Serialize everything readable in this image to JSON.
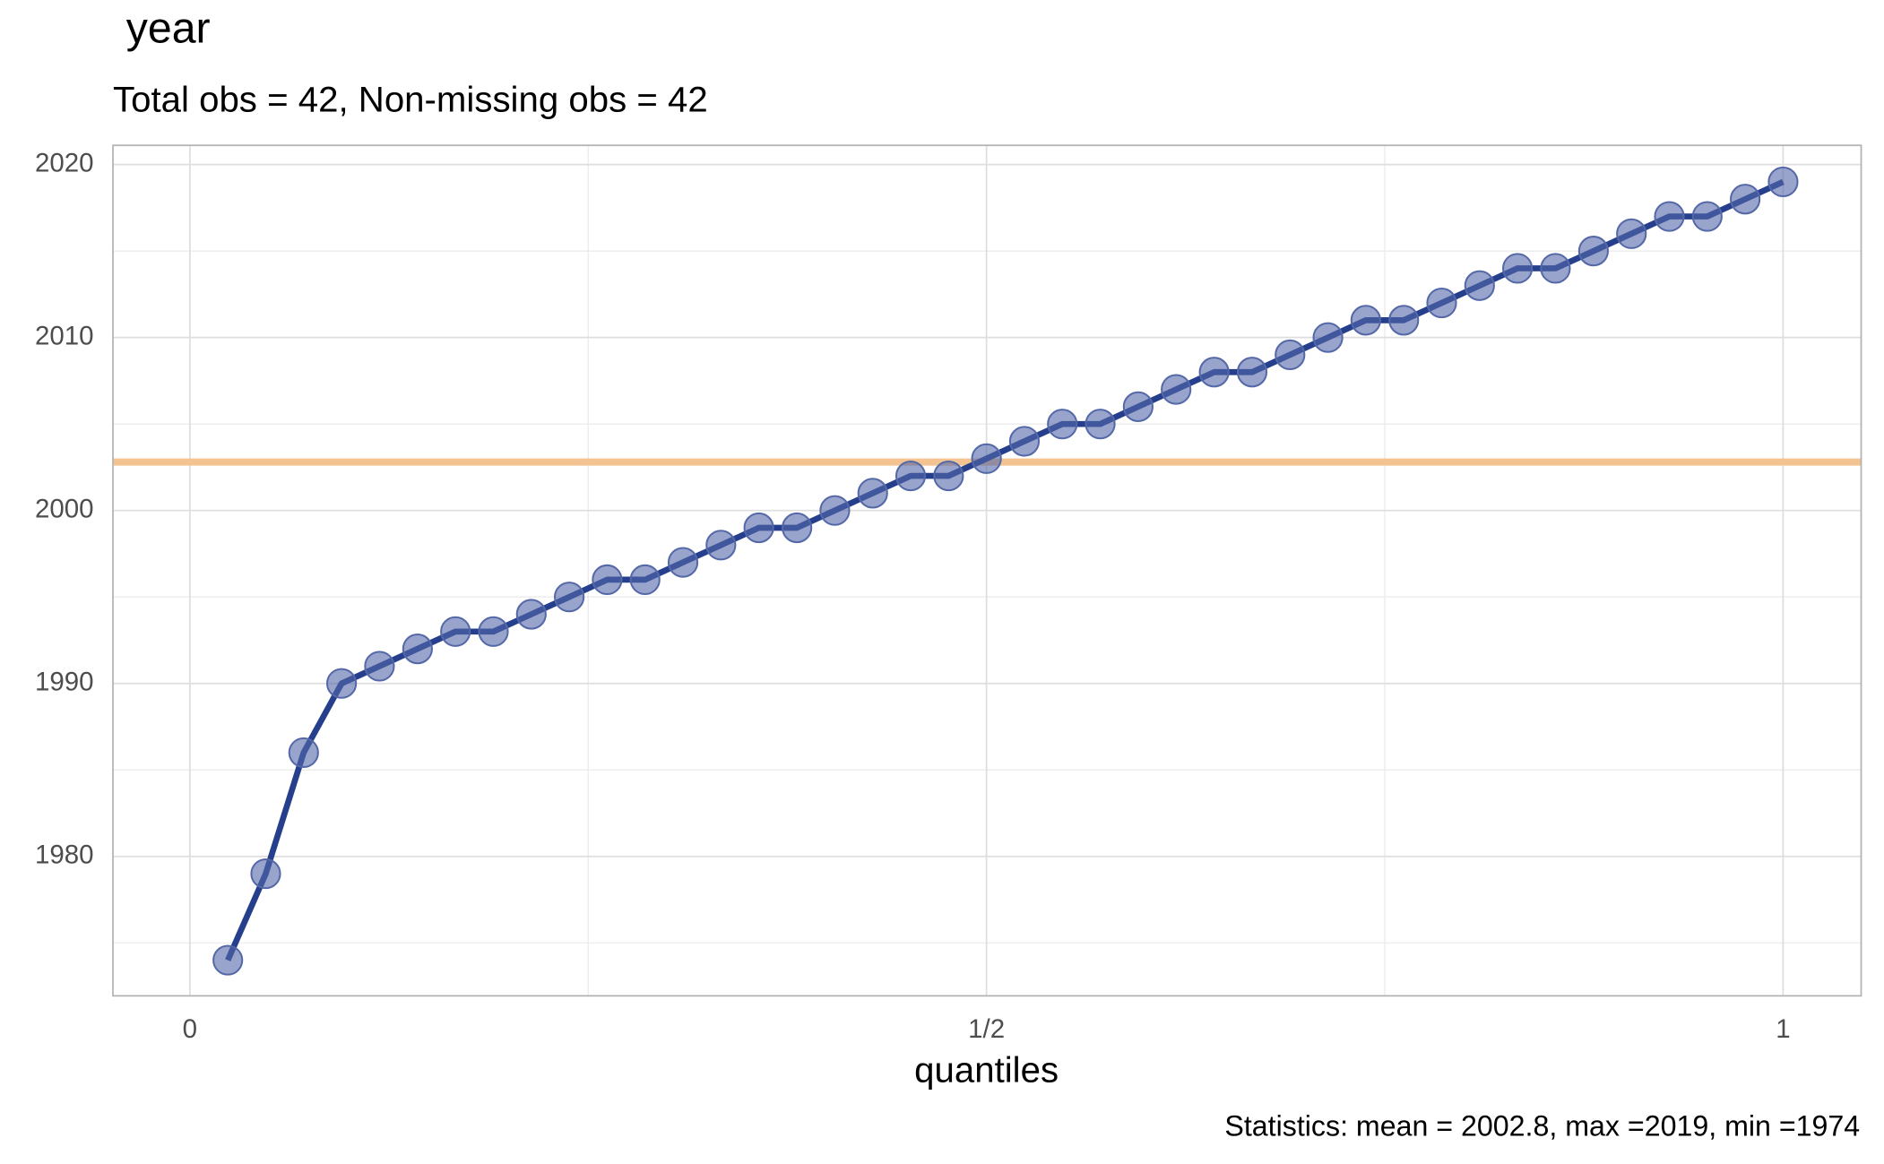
{
  "chart_data": {
    "type": "line",
    "title": "year",
    "subtitle": "Total obs = 42,  Non-missing obs = 42",
    "x_label": "quantiles",
    "caption": "Statistics: mean = 2002.8, max =2019, min =1974",
    "x": [
      0.0238,
      0.0476,
      0.0714,
      0.0952,
      0.119,
      0.1429,
      0.1667,
      0.1905,
      0.2143,
      0.2381,
      0.2619,
      0.2857,
      0.3095,
      0.3333,
      0.3571,
      0.381,
      0.4048,
      0.4286,
      0.4524,
      0.4762,
      0.5,
      0.5238,
      0.5476,
      0.5714,
      0.5952,
      0.619,
      0.6429,
      0.6667,
      0.6905,
      0.7143,
      0.7381,
      0.7619,
      0.7857,
      0.8095,
      0.8333,
      0.8571,
      0.881,
      0.9048,
      0.9286,
      0.9524,
      0.9762,
      1
    ],
    "values": [
      1974,
      1979,
      1986,
      1990,
      1991,
      1992,
      1993,
      1993,
      1994,
      1995,
      1996,
      1996,
      1997,
      1998,
      1999,
      1999,
      2000,
      2001,
      2002,
      2002,
      2003,
      2004,
      2005,
      2005,
      2006,
      2007,
      2008,
      2008,
      2009,
      2010,
      2011,
      2011,
      2012,
      2013,
      2014,
      2014,
      2015,
      2016,
      2017,
      2017,
      2018,
      2019
    ],
    "line_color": "#263f8c",
    "point_color": "#5468a8",
    "mean_line": {
      "value": 2002.8,
      "color": "#f3c392"
    },
    "xlim": [
      -0.0483,
      1.049
    ],
    "ylim": [
      1971.94,
      2021.11
    ],
    "xticks": [
      0,
      {
        "value": 0.5,
        "label": "1/2"
      },
      1
    ],
    "yticks": [
      1980,
      1990,
      2000,
      2010,
      2020
    ],
    "x_minor_ticks": [
      0.25,
      0.75
    ],
    "y_minor_ticks": [
      1975,
      1985,
      1995,
      2005,
      2015
    ],
    "grid": true
  }
}
